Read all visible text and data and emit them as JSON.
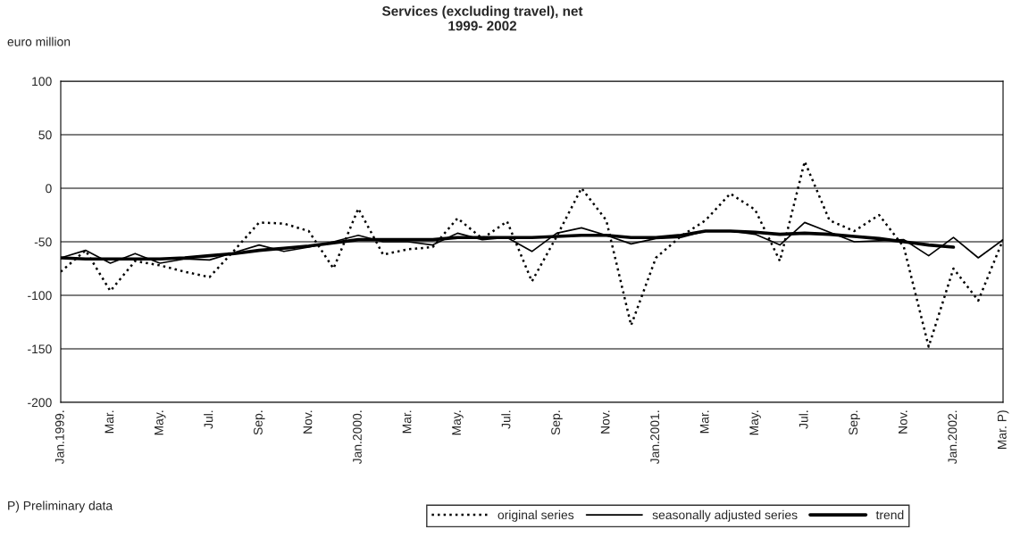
{
  "chart_data": {
    "type": "line",
    "title": "Services (excluding travel), net\n1999- 2002",
    "ylabel": "euro million",
    "categories": [
      "Jan.1999.",
      null,
      "Mar.",
      null,
      "May.",
      null,
      "Jul.",
      null,
      "Sep.",
      null,
      "Nov.",
      null,
      "Jan.2000.",
      null,
      "Mar.",
      null,
      "May.",
      null,
      "Jul.",
      null,
      "Sep.",
      null,
      "Nov.",
      null,
      "Jan.2001.",
      null,
      "Mar.",
      null,
      "May.",
      null,
      "Jul.",
      null,
      "Sep.",
      null,
      "Nov.",
      null,
      "Jan.2002.",
      null,
      "Mar. P)"
    ],
    "series": [
      {
        "name": "original series",
        "color": "#000000",
        "line_style": "dotted",
        "values": [
          -78,
          -58,
          -96,
          -68,
          -72,
          -78,
          -83,
          -58,
          -32,
          -33,
          -40,
          -75,
          -19,
          -62,
          -57,
          -55,
          -28,
          -47,
          -31,
          -87,
          -45,
          0,
          -30,
          -128,
          -65,
          -45,
          -30,
          -5,
          -20,
          -68,
          25,
          -30,
          -40,
          -25,
          -55,
          -148,
          -75,
          -105,
          -48
        ]
      },
      {
        "name": "seasonally adjusted series",
        "color": "#000000",
        "line_style": "solid",
        "values": [
          -65,
          -58,
          -70,
          -61,
          -70,
          -66,
          -67,
          -60,
          -53,
          -59,
          -55,
          -50,
          -44,
          -50,
          -50,
          -53,
          -42,
          -48,
          -46,
          -59,
          -42,
          -37,
          -44,
          -52,
          -47,
          -46,
          -40,
          -40,
          -43,
          -53,
          -32,
          -41,
          -50,
          -49,
          -48,
          -63,
          -46,
          -65,
          -48
        ]
      },
      {
        "name": "trend",
        "color": "#000000",
        "line_style": "solid",
        "values": [
          -65,
          -66,
          -66,
          -66,
          -66,
          -65,
          -63,
          -61,
          -58,
          -56,
          -54,
          -51,
          -48,
          -48,
          -48,
          -48,
          -46,
          -46,
          -46,
          -46,
          -45,
          -44,
          -44,
          -46,
          -46,
          -44,
          -40,
          -40,
          -41,
          -43,
          -42,
          -43,
          -45,
          -47,
          -50,
          -53,
          -55,
          null,
          null
        ]
      }
    ],
    "ylim": [
      -200,
      100
    ],
    "yticks": [
      -200,
      -150,
      -100,
      -50,
      0,
      50,
      100
    ],
    "grid": "y",
    "legend": "bottom",
    "marker": "none",
    "annotations": [
      "P) Preliminary data"
    ]
  }
}
